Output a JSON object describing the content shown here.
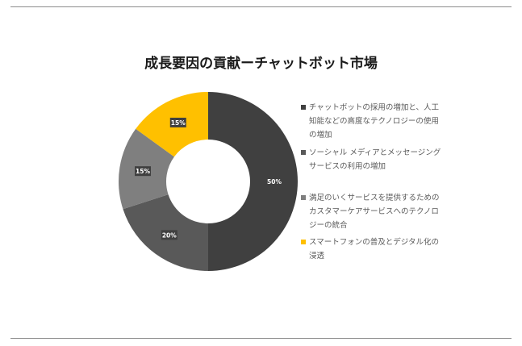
{
  "chart_data": {
    "type": "donut",
    "title": "成長要因の貢献ーチャットボット市場",
    "legend_position": "right",
    "series": [
      {
        "name": "チャットボットの採用の増加と、人工知能などの高度なテクノロジーの使用の増加",
        "value": 50,
        "label": "50%",
        "color": "#404040"
      },
      {
        "name": "ソーシャル メディアとメッセージング サービスの利用の増加",
        "value": 20,
        "label": "20%",
        "color": "#595959"
      },
      {
        "name": "満足のいくサービスを提供するためのカスタマーケアサービスへのテクノロジーの統合",
        "value": 15,
        "label": "15%",
        "color": "#7f7f7f"
      },
      {
        "name": "スマートフォンの普及とデジタル化の浸透",
        "value": 15,
        "label": "15%",
        "color": "#ffc000"
      }
    ]
  }
}
